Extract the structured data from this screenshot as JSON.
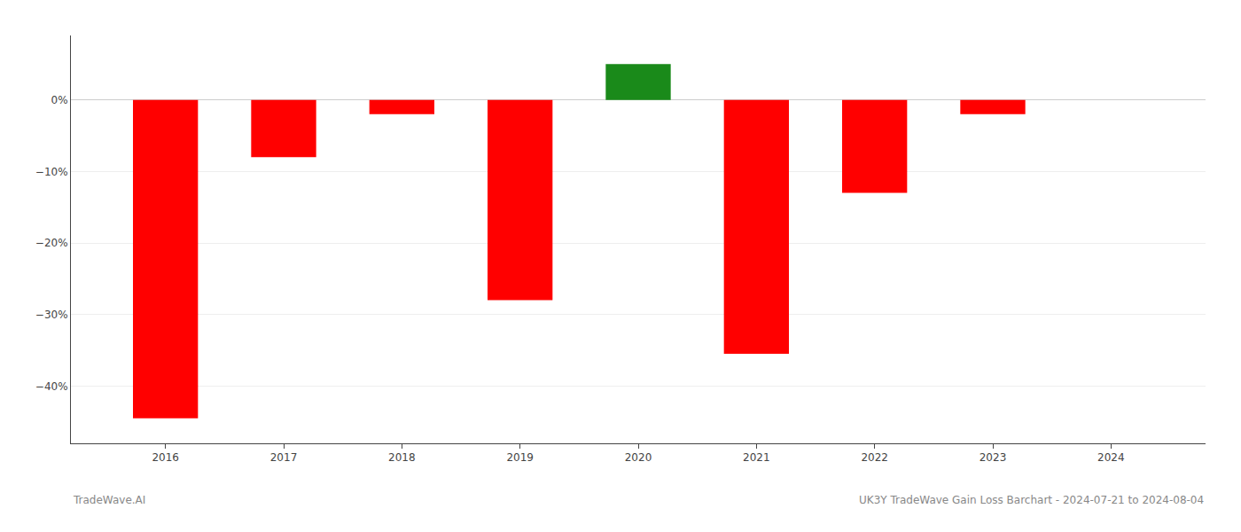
{
  "chart_data": {
    "type": "bar",
    "x": [
      2016,
      2017,
      2018,
      2019,
      2020,
      2021,
      2022,
      2023,
      2024
    ],
    "values": [
      -44.5,
      -8.0,
      -2.0,
      -28.0,
      5.0,
      -35.5,
      -13.0,
      -2.0,
      0.0
    ],
    "colors": [
      "#ff0000",
      "#ff0000",
      "#ff0000",
      "#ff0000",
      "#1a8a1a",
      "#ff0000",
      "#ff0000",
      "#ff0000",
      "#ff0000"
    ],
    "xlim": [
      2015.2,
      2024.8
    ],
    "xticks": [
      2016,
      2017,
      2018,
      2019,
      2020,
      2021,
      2022,
      2023,
      2024
    ],
    "ylim": [
      -48,
      9
    ],
    "yticks": [
      {
        "value": 0,
        "label": "0%"
      },
      {
        "value": -10,
        "label": "−10%"
      },
      {
        "value": -20,
        "label": "−20%"
      },
      {
        "value": -30,
        "label": "−30%"
      },
      {
        "value": -40,
        "label": "−40%"
      }
    ],
    "grid": true,
    "annotations": [
      "TradeWave.AI",
      "UK3Y TradeWave Gain Loss Barchart - 2024-07-21 to 2024-08-04"
    ]
  }
}
